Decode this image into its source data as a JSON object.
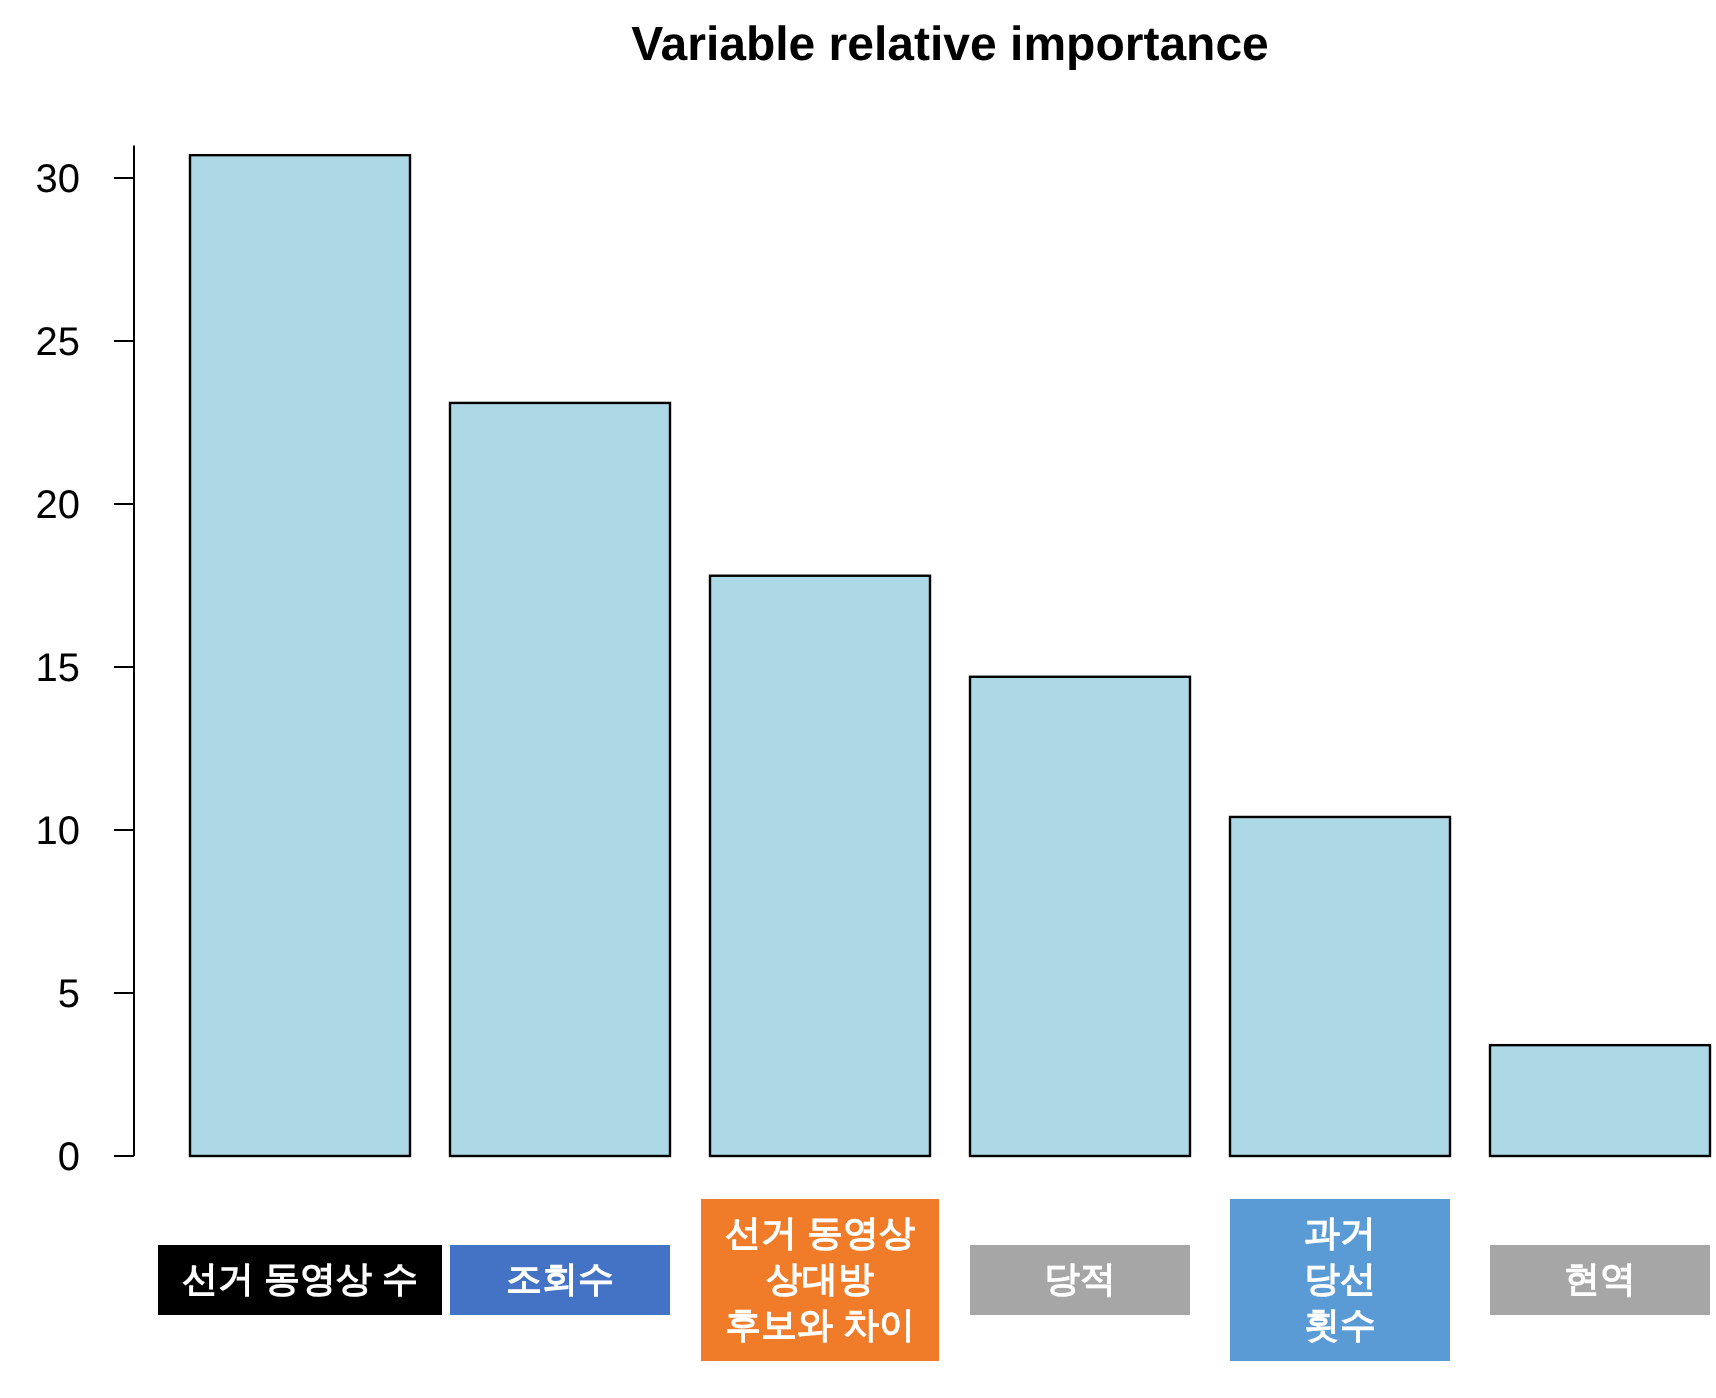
{
  "chart_data": {
    "type": "bar",
    "title": "Variable relative importance",
    "categories": [
      "선거 동영상 수",
      "조회수",
      "선거 동영상\n상대방\n후보와 차이",
      "당적",
      "과거\n당선\n횟수",
      "현역"
    ],
    "values": [
      30.7,
      23.1,
      17.8,
      14.7,
      10.4,
      3.4
    ],
    "color": "#add8e6",
    "ylim": [
      0,
      31
    ],
    "yticks": [
      0,
      5,
      10,
      15,
      20,
      25,
      30
    ],
    "grid": false
  }
}
